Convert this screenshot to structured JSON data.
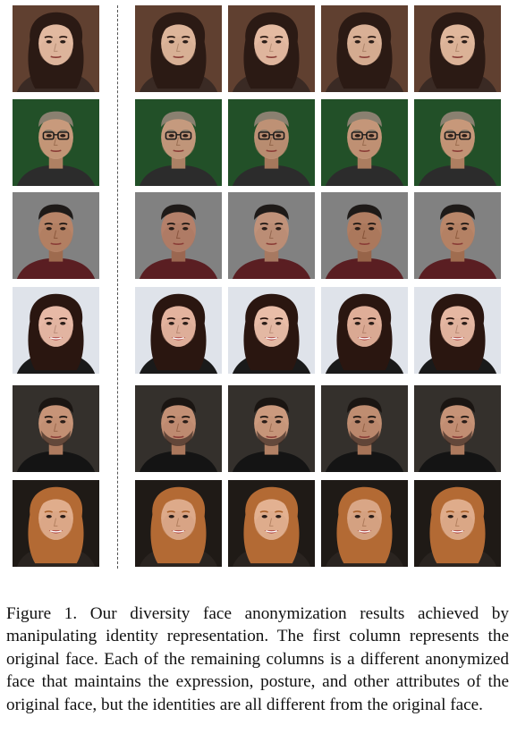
{
  "figure": {
    "rows": [
      {
        "name": "woman-dark-hair",
        "bg": "#5a3a2a",
        "skin": "#e2b9a0",
        "hair": "#2b1a14",
        "shirt": "#3a2a24",
        "variants": [
          "#e2b9a0",
          "#ddb59a",
          "#e4bba2",
          "#d9b096",
          "#e0b79c"
        ]
      },
      {
        "name": "man-glasses",
        "bg": "#1d4a23",
        "skin": "#c89a7c",
        "hair": "#8a8070",
        "shirt": "#2c2c2c",
        "variants": [
          "#c89a7c",
          "#c59a7e",
          "#be9175",
          "#c49679",
          "#c7987a"
        ]
      },
      {
        "name": "man-grey-bg",
        "bg": "#7b7b7b",
        "skin": "#b78468",
        "hair": "#1e1a18",
        "shirt": "#5a1e22",
        "variants": [
          "#b78468",
          "#b4806a",
          "#c0927a",
          "#b07d62",
          "#b98669"
        ]
      },
      {
        "name": "woman-smiling",
        "bg": "#d9dde4",
        "skin": "#e7b9a6",
        "hair": "#2a1610",
        "shirt": "#1a1a1a",
        "variants": [
          "#e7b9a6",
          "#e3b39e",
          "#e9bda8",
          "#dfae98",
          "#e5b7a2"
        ]
      },
      {
        "name": "man-beard",
        "bg": "#2e2a26",
        "skin": "#c79478",
        "hair": "#1a1512",
        "shirt": "#141414",
        "variants": [
          "#c79478",
          "#c39075",
          "#cb9a7e",
          "#bf8d71",
          "#c69377"
        ]
      },
      {
        "name": "woman-blonde",
        "bg": "#1a1410",
        "skin": "#e0ad8c",
        "hair": "#b36a34",
        "shirt": "#2a2420",
        "variants": [
          "#e0ad8c",
          "#ddaa8a",
          "#e3b191",
          "#d9a686",
          "#dfac8b"
        ]
      }
    ]
  },
  "caption": {
    "text": "Figure 1. Our diversity face anonymization results achieved by manipulating identity representation. The first column represents the original face.  Each of the remaining columns is a different anonymized face that maintains the expression, posture, and other attributes of the original face, but the identities are all different from the original face."
  }
}
